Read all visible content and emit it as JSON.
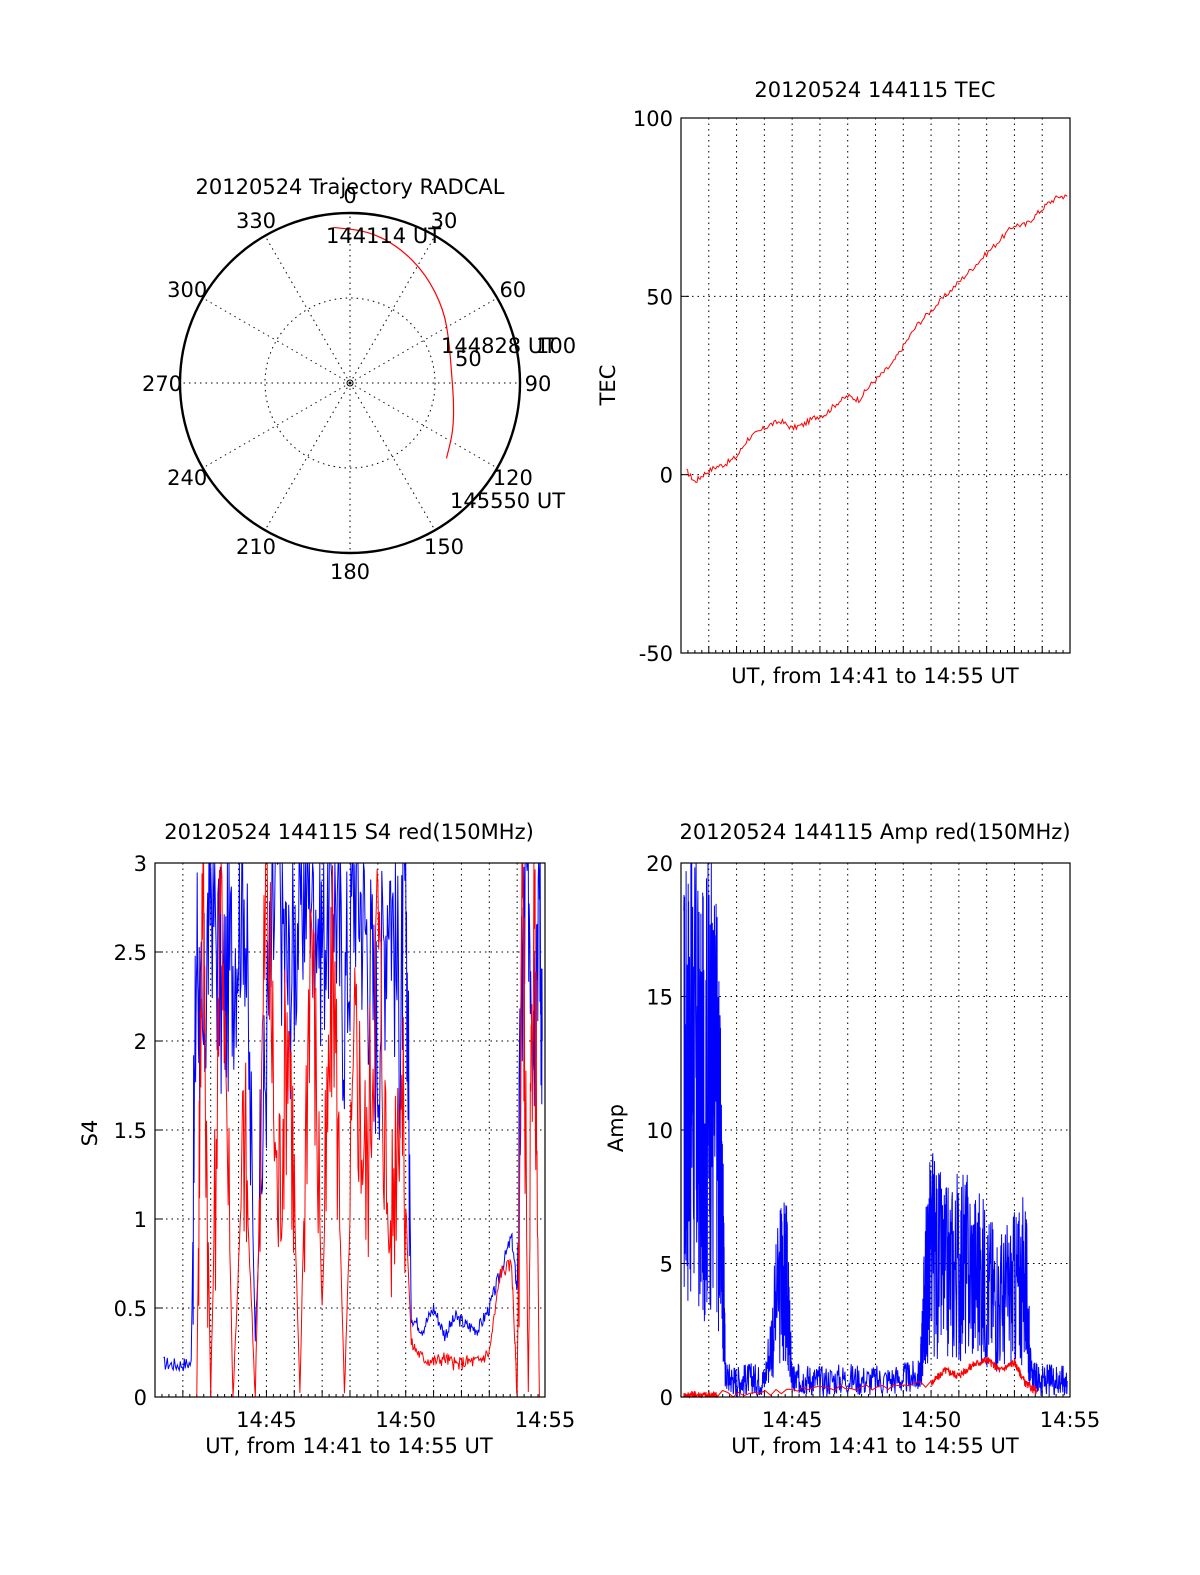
{
  "colors": {
    "red": "#ff0000",
    "blue": "#0000ff",
    "axis": "#000000",
    "background": "#ffffff"
  },
  "chart_data": [
    {
      "id": "trajectory",
      "type": "polar",
      "title": "20120524 Trajectory RADCAL",
      "angle_labels": [
        "0",
        "30",
        "60",
        "90",
        "120",
        "150",
        "180",
        "210",
        "240",
        "270",
        "300",
        "330"
      ],
      "radial_labels": [
        "50",
        "100"
      ],
      "rlim": [
        0,
        100
      ],
      "annotations": {
        "start": "144114 UT",
        "middle": "144828 UT",
        "end": "145550 UT"
      },
      "series": [
        {
          "color": "#ff0000",
          "points": [
            {
              "az": 354,
              "r": 92
            },
            {
              "az": 7,
              "r": 90
            },
            {
              "az": 20,
              "r": 85
            },
            {
              "az": 35,
              "r": 78
            },
            {
              "az": 52,
              "r": 70
            },
            {
              "az": 68,
              "r": 63
            },
            {
              "az": 84,
              "r": 60
            },
            {
              "az": 100,
              "r": 62
            },
            {
              "az": 115,
              "r": 67
            },
            {
              "az": 128,
              "r": 72
            }
          ]
        }
      ]
    },
    {
      "id": "tec",
      "type": "line",
      "title": "20120524 144115 TEC",
      "xlabel": "UT, from 14:41 to 14:55 UT",
      "ylabel": "TEC",
      "xlim": [
        0,
        14
      ],
      "ylim": [
        -50,
        100
      ],
      "y_ticks": [
        "100",
        "50",
        "0",
        "-50"
      ],
      "x_tick_labels": [],
      "x_grid_minutes": [
        1,
        2,
        3,
        4,
        5,
        6,
        7,
        8,
        9,
        10,
        11,
        12,
        13
      ],
      "series": [
        {
          "color": "#ff0000",
          "x": [
            0.2,
            0.5,
            0.8,
            1.2,
            1.6,
            2.0,
            2.4,
            2.8,
            3.2,
            3.6,
            4.0,
            4.4,
            4.8,
            5.2,
            5.6,
            6.0,
            6.4,
            6.8,
            7.2,
            7.6,
            8.0,
            8.5,
            9.0,
            9.5,
            10.0,
            10.5,
            11.0,
            11.5,
            12.0,
            12.4,
            12.8,
            13.2,
            13.6,
            13.9
          ],
          "y": [
            1,
            -2,
            0,
            2,
            3,
            5,
            10,
            12,
            14,
            15,
            13,
            14,
            16,
            17,
            20,
            22,
            21,
            25,
            28,
            31,
            36,
            42,
            46,
            50,
            54,
            58,
            62,
            66,
            70,
            70,
            73,
            76,
            78,
            78
          ]
        }
      ]
    },
    {
      "id": "s4",
      "type": "line",
      "title": "20120524 144115 S4 red(150MHz)",
      "xlabel": "UT, from 14:41 to 14:55 UT",
      "ylabel": "S4",
      "xlim": [
        0,
        14
      ],
      "ylim": [
        0,
        3
      ],
      "y_ticks": [
        "3",
        "2.5",
        "2",
        "1.5",
        "1",
        "0.5",
        "0"
      ],
      "x_tick_labels": [
        "14:45",
        "14:50",
        "14:55"
      ],
      "x_tick_minutes": [
        4,
        9,
        14
      ],
      "x_grid_minutes": [
        1,
        2,
        3,
        4,
        5,
        6,
        7,
        8,
        9,
        10,
        11,
        12,
        13
      ],
      "series": [
        {
          "color": "#0000ff",
          "x": [
            0.3,
            0.8,
            1.3,
            1.5,
            1.7,
            2.0,
            2.4,
            2.8,
            3.2,
            3.6,
            4.0,
            4.4,
            4.8,
            5.2,
            5.6,
            6.0,
            6.4,
            6.8,
            7.2,
            7.6,
            8.0,
            8.4,
            8.8,
            9.0,
            9.2,
            9.6,
            10.0,
            10.4,
            10.8,
            11.2,
            11.6,
            12.0,
            12.4,
            12.8,
            13.0,
            13.2,
            13.4,
            13.6,
            13.8,
            13.9
          ],
          "y": [
            0.19,
            0.18,
            0.19,
            2.6,
            1.8,
            3.0,
            2.2,
            2.5,
            3.0,
            0.35,
            2.0,
            3.0,
            2.3,
            2.8,
            3.0,
            2.6,
            3.0,
            2.2,
            3.0,
            2.6,
            2.0,
            3.0,
            2.1,
            3.0,
            0.45,
            0.38,
            0.5,
            0.35,
            0.45,
            0.4,
            0.38,
            0.5,
            0.7,
            0.9,
            0.6,
            2.5,
            3.0,
            2.2,
            3.0,
            2.0
          ]
        },
        {
          "color": "#ff0000",
          "x": [
            1.5,
            1.7,
            2.0,
            2.4,
            2.8,
            3.2,
            3.6,
            4.0,
            4.4,
            4.8,
            5.2,
            5.6,
            6.0,
            6.4,
            6.8,
            7.2,
            7.6,
            8.0,
            8.4,
            8.8,
            9.2,
            9.6,
            10.0,
            10.4,
            10.8,
            11.2,
            11.6,
            12.0,
            12.4,
            12.8,
            13.0,
            13.2,
            13.4,
            13.6,
            13.8
          ],
          "y": [
            0,
            3.0,
            0,
            3.0,
            0,
            1.5,
            0,
            3.0,
            1.0,
            2.2,
            0,
            2.8,
            0.5,
            2.5,
            0,
            2.0,
            1.2,
            2.7,
            0.8,
            1.9,
            0.3,
            0.22,
            0.2,
            0.22,
            0.18,
            0.2,
            0.2,
            0.25,
            0.7,
            0.75,
            0,
            3.0,
            0,
            3.0,
            0
          ]
        }
      ]
    },
    {
      "id": "amp",
      "type": "line",
      "title": "20120524 144115 Amp red(150MHz)",
      "xlabel": "UT, from 14:41 to 14:55 UT",
      "ylabel": "Amp",
      "xlim": [
        0,
        14
      ],
      "ylim": [
        0,
        20
      ],
      "y_ticks": [
        "20",
        "15",
        "10",
        "5",
        "0"
      ],
      "x_tick_labels": [
        "14:45",
        "14:50",
        "14:55"
      ],
      "x_tick_minutes": [
        4,
        9,
        14
      ],
      "x_grid_minutes": [
        1,
        2,
        3,
        4,
        5,
        6,
        7,
        8,
        9,
        10,
        11,
        12,
        13
      ],
      "series": [
        {
          "color": "#0000ff",
          "x": [
            0.1,
            0.4,
            0.7,
            1.0,
            1.3,
            1.5,
            1.6,
            2.0,
            2.5,
            3.0,
            3.6,
            3.8,
            4.0,
            4.4,
            5.0,
            6.0,
            7.0,
            8.0,
            8.6,
            8.8,
            9.0,
            9.5,
            10.0,
            10.5,
            11.0,
            11.5,
            12.0,
            12.4,
            12.6,
            13.0,
            13.5,
            13.9
          ],
          "y": [
            11.5,
            13.0,
            10.5,
            12.0,
            11.0,
            6.0,
            0.8,
            0.6,
            0.7,
            0.6,
            4.5,
            4.2,
            0.6,
            0.7,
            0.6,
            0.7,
            0.6,
            0.7,
            0.8,
            4.0,
            5.5,
            4.5,
            5.0,
            4.8,
            4.2,
            3.6,
            4.0,
            4.5,
            0.8,
            0.6,
            0.7,
            0.6
          ]
        },
        {
          "color": "#ff0000",
          "x": [
            0.1,
            0.5,
            1.0,
            1.3,
            9.0,
            9.5,
            10.0,
            10.5,
            11.0,
            11.5,
            12.0,
            12.4,
            12.8
          ],
          "y": [
            0.05,
            0.1,
            0.05,
            0.1,
            0.5,
            1.0,
            0.8,
            1.2,
            1.4,
            1.0,
            1.3,
            0.5,
            0.2
          ]
        }
      ]
    }
  ]
}
